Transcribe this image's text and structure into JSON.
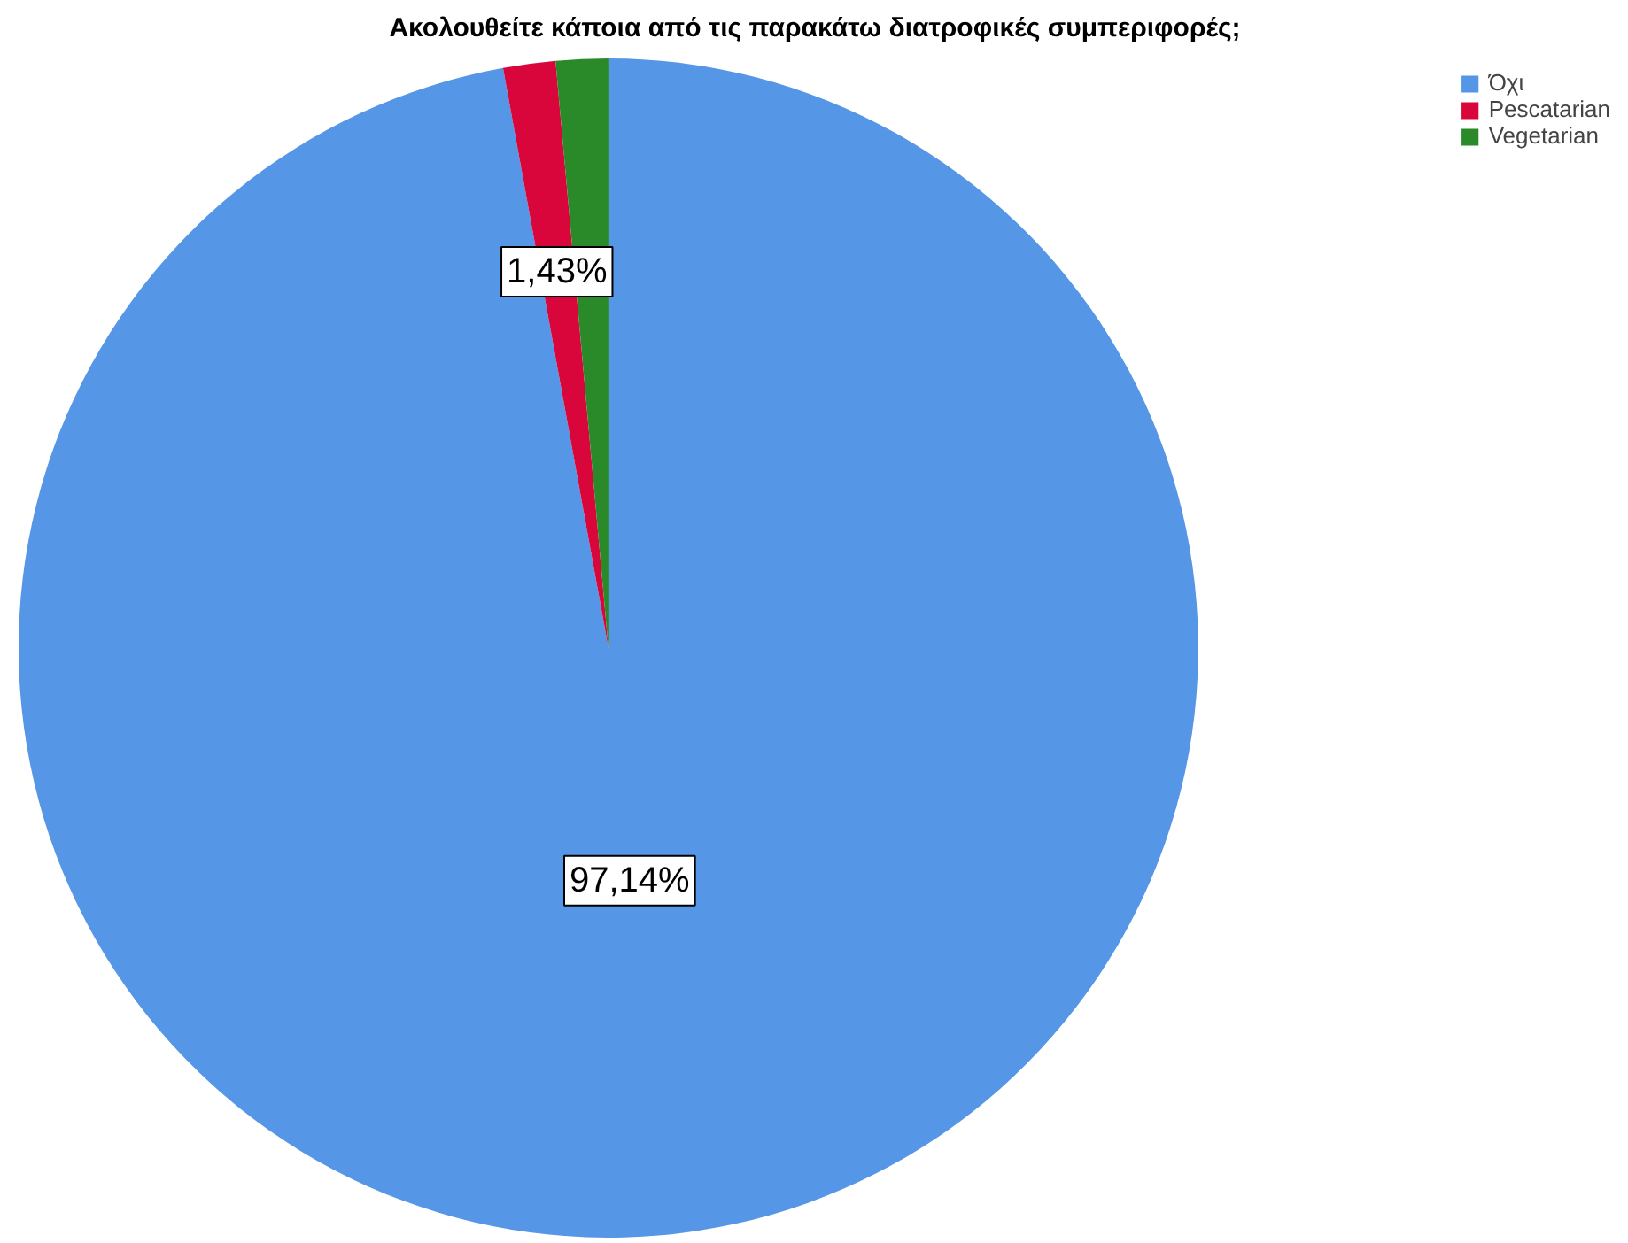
{
  "chart_data": {
    "type": "pie",
    "title": "Ακολουθείτε κάποια από τις παρακάτω διατροφικές συμπεριφορές;",
    "categories": [
      "Όχι",
      "Pescatarian",
      "Vegetarian"
    ],
    "values": [
      97.14,
      1.43,
      1.43
    ],
    "colors": [
      "#5596e6",
      "#d9063b",
      "#2a8a2a"
    ],
    "value_labels": [
      "97,14%",
      "1,43%",
      null
    ],
    "legend": "top right"
  }
}
